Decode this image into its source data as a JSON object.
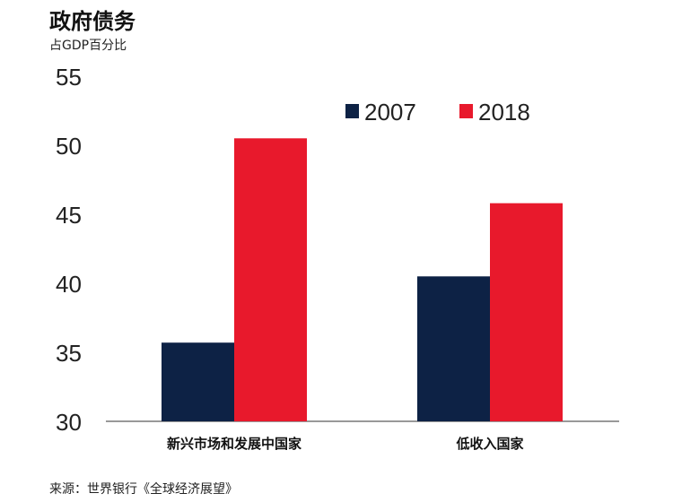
{
  "chart_data": {
    "type": "bar",
    "title": "政府债务",
    "subtitle": "占GDP百分比",
    "source": "来源：世界银行《全球经济展望》",
    "categories": [
      "新兴市场和发展中国家",
      "低收入国家"
    ],
    "series": [
      {
        "name": "2007",
        "color": "#0d2245",
        "values": [
          35.7,
          40.5
        ]
      },
      {
        "name": "2018",
        "color": "#e8192c",
        "values": [
          50.5,
          45.8
        ]
      }
    ],
    "ylim": [
      30,
      55
    ],
    "yticks": [
      "30",
      "35",
      "40",
      "45",
      "50",
      "55"
    ],
    "legend": "top-right",
    "grid": false
  }
}
